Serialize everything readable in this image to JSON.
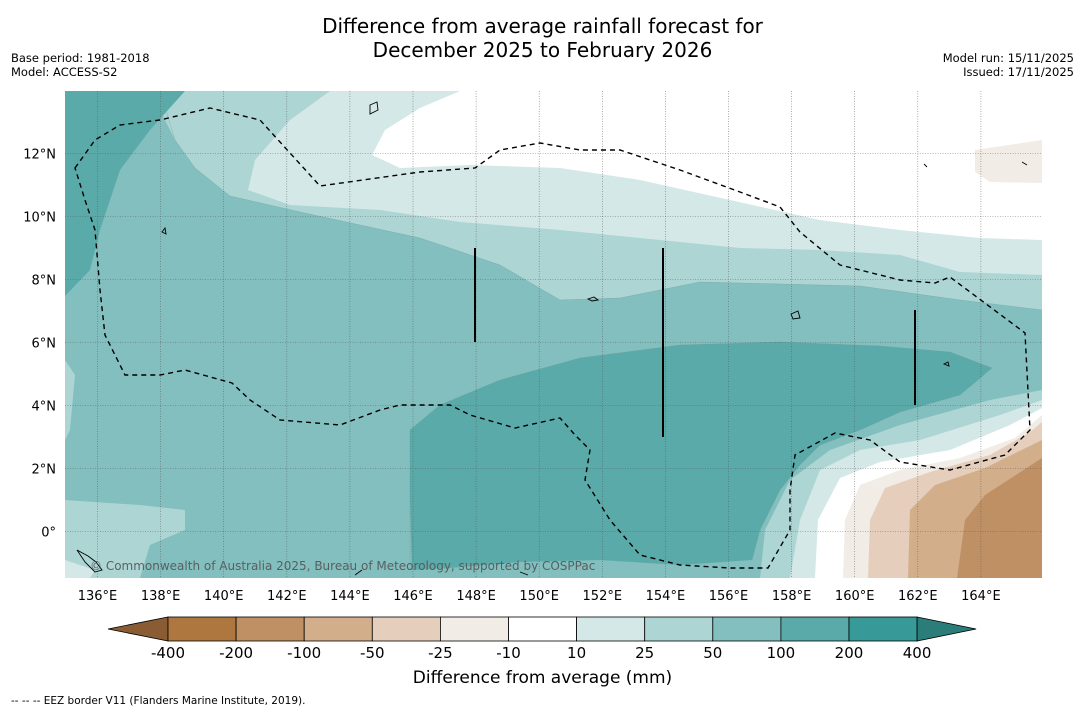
{
  "title_line1": "Difference from average rainfall forecast for",
  "title_line2": "December 2025 to February 2026",
  "meta": {
    "base_period": "Base period: 1981-2018",
    "model": "Model: ACCESS-S2",
    "model_run": "Model run: 15/11/2025",
    "issued": "Issued: 17/11/2025"
  },
  "map": {
    "copyright": "© Commonwealth of Australia 2025, Bureau of Meteorology, supported by COSPPac",
    "lon_labels": [
      "136°E",
      "138°E",
      "140°E",
      "142°E",
      "144°E",
      "146°E",
      "148°E",
      "150°E",
      "152°E",
      "154°E",
      "156°E",
      "158°E",
      "160°E",
      "162°E",
      "164°E"
    ],
    "lat_labels": [
      "12°N",
      "10°N",
      "8°N",
      "6°N",
      "4°N",
      "2°N",
      "0°"
    ]
  },
  "colorbar": {
    "labels": [
      "-400",
      "-200",
      "-100",
      "-50",
      "-25",
      "-10",
      "10",
      "25",
      "50",
      "100",
      "200",
      "400"
    ],
    "colors": [
      "#8a5c33",
      "#ae773f",
      "#c09065",
      "#d3ae8b",
      "#e5cfbc",
      "#f2ece7",
      "#ffffff",
      "#d4e8e7",
      "#acd5d4",
      "#82bfbe",
      "#5aaaaa",
      "#379a98",
      "#2a7d79"
    ],
    "title": "Difference from average (mm)"
  },
  "footnote": "--  --  -- EEZ border V11 (Flanders Marine Institute, 2019)."
}
